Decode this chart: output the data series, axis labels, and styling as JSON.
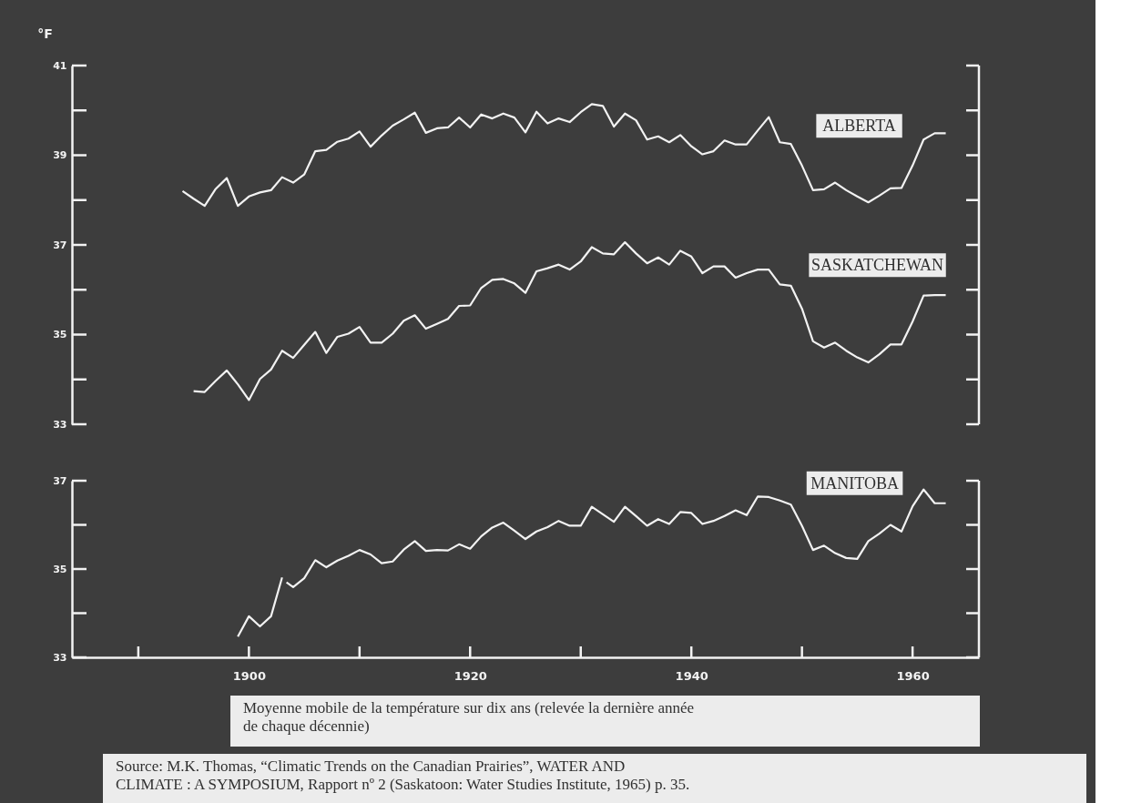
{
  "chart_data": [
    {
      "type": "line",
      "ylabel": "°F",
      "xlim": [
        1884,
        1966
      ],
      "ylim": [
        33,
        41
      ],
      "yticks": [
        33,
        {
          "value": 34,
          "label": null
        },
        35,
        {
          "value": 36,
          "label": null
        },
        37,
        {
          "value": 38,
          "label": null
        },
        39,
        {
          "value": 40,
          "label": null
        },
        41
      ],
      "tick_labels": "y",
      "series": [
        {
          "name": "ALBERTA",
          "color": "#f2f2f2",
          "x": [
            1894,
            1895,
            1896,
            1897,
            1898,
            1899,
            1900,
            1901,
            1902,
            1903,
            1904,
            1905,
            1906,
            1907,
            1908,
            1909,
            1910,
            1911,
            1912,
            1913,
            1914,
            1915,
            1916,
            1917,
            1918,
            1919,
            1920,
            1921,
            1922,
            1923,
            1924,
            1925,
            1926,
            1927,
            1928,
            1929,
            1930,
            1931,
            1932,
            1933,
            1934,
            1935,
            1936,
            1937,
            1938,
            1939,
            1940,
            1941,
            1942,
            1943,
            1944,
            1945,
            1946,
            1947,
            1948,
            1949,
            1950,
            1951,
            1952,
            1953,
            1954,
            1955,
            1956,
            1957,
            1958,
            1959,
            1960,
            1961,
            1962,
            1963
          ],
          "values": [
            38.2,
            38.03,
            37.87,
            38.25,
            38.49,
            37.87,
            38.08,
            38.17,
            38.22,
            38.51,
            38.39,
            38.57,
            39.09,
            39.12,
            39.3,
            39.37,
            39.53,
            39.19,
            39.44,
            39.66,
            39.8,
            39.95,
            39.5,
            39.6,
            39.62,
            39.84,
            39.62,
            39.91,
            39.82,
            39.93,
            39.84,
            39.51,
            39.97,
            39.71,
            39.82,
            39.74,
            39.96,
            40.14,
            40.1,
            39.64,
            39.93,
            39.78,
            39.35,
            39.42,
            39.29,
            39.45,
            39.2,
            39.02,
            39.09,
            39.33,
            39.24,
            39.24,
            39.55,
            39.85,
            39.29,
            39.25,
            38.77,
            38.22,
            38.24,
            38.39,
            38.22,
            38.08,
            37.95,
            38.1,
            38.26,
            38.27,
            38.77,
            39.35,
            39.49,
            39.49
          ]
        },
        {
          "name": "SASKATCHEWAN",
          "color": "#f2f2f2",
          "x": [
            1895,
            1896,
            1897,
            1898,
            1899,
            1900,
            1901,
            1902,
            1903,
            1904,
            1905,
            1906,
            1907,
            1908,
            1909,
            1910,
            1911,
            1912,
            1913,
            1914,
            1915,
            1916,
            1917,
            1918,
            1919,
            1920,
            1921,
            1922,
            1923,
            1924,
            1925,
            1926,
            1927,
            1928,
            1929,
            1930,
            1931,
            1932,
            1933,
            1934,
            1935,
            1936,
            1937,
            1938,
            1939,
            1940,
            1941,
            1942,
            1943,
            1944,
            1945,
            1946,
            1947,
            1948,
            1949,
            1950,
            1951,
            1952,
            1953,
            1954,
            1955,
            1956,
            1957,
            1958,
            1959,
            1960,
            1961,
            1962,
            1963
          ],
          "values": [
            33.74,
            33.72,
            33.97,
            34.2,
            33.89,
            33.54,
            34.01,
            34.22,
            34.64,
            34.48,
            34.77,
            35.06,
            34.59,
            34.95,
            35.02,
            35.17,
            34.82,
            34.82,
            35.02,
            35.31,
            35.43,
            35.13,
            35.24,
            35.35,
            35.64,
            35.65,
            36.04,
            36.22,
            36.24,
            36.14,
            35.93,
            36.41,
            36.48,
            36.56,
            36.45,
            36.63,
            36.95,
            36.81,
            36.79,
            37.06,
            36.81,
            36.59,
            36.72,
            36.56,
            36.87,
            36.74,
            36.37,
            36.52,
            36.52,
            36.27,
            36.37,
            36.45,
            36.45,
            36.12,
            36.09,
            35.58,
            34.85,
            34.71,
            34.82,
            34.64,
            34.49,
            34.38,
            34.56,
            34.78,
            34.78,
            35.29,
            35.87,
            35.88,
            35.88
          ]
        }
      ]
    },
    {
      "type": "line",
      "xlim": [
        1884,
        1966
      ],
      "ylim": [
        33,
        37
      ],
      "xticks": [
        {
          "value": 1890,
          "label": null
        },
        1900,
        {
          "value": 1910,
          "label": null
        },
        1920,
        {
          "value": 1930,
          "label": null
        },
        1940,
        {
          "value": 1950,
          "label": null
        },
        1960
      ],
      "yticks": [
        33,
        {
          "value": 34,
          "label": null
        },
        35,
        {
          "value": 36,
          "label": null
        },
        37
      ],
      "series": [
        {
          "name": "MANITOBA",
          "color": "#f2f2f2",
          "x": [
            1899,
            1900,
            1901,
            1902,
            1903,
            1903.2,
            1903.4,
            1904,
            1905,
            1906,
            1907,
            1908,
            1909,
            1910,
            1911,
            1912,
            1913,
            1914,
            1915,
            1916,
            1917,
            1918,
            1919,
            1920,
            1921,
            1922,
            1923,
            1924,
            1925,
            1926,
            1927,
            1928,
            1929,
            1930,
            1931,
            1932,
            1933,
            1934,
            1935,
            1936,
            1937,
            1938,
            1939,
            1940,
            1941,
            1942,
            1943,
            1944,
            1945,
            1946,
            1947,
            1948,
            1949,
            1950,
            1951,
            1952,
            1953,
            1954,
            1955,
            1956,
            1957,
            1958,
            1959,
            1960,
            1961,
            1962,
            1963
          ],
          "values": [
            33.47,
            33.93,
            33.7,
            33.93,
            34.81,
            null,
            34.7,
            34.59,
            34.79,
            35.2,
            35.04,
            35.19,
            35.3,
            35.43,
            35.33,
            35.13,
            35.17,
            35.44,
            35.63,
            35.41,
            35.43,
            35.42,
            35.56,
            35.46,
            35.74,
            35.94,
            36.05,
            35.87,
            35.68,
            35.85,
            35.95,
            36.09,
            35.98,
            35.98,
            36.41,
            36.24,
            36.07,
            36.41,
            36.2,
            35.98,
            36.13,
            36.02,
            36.29,
            36.27,
            36.02,
            36.09,
            36.2,
            36.33,
            36.22,
            36.64,
            36.63,
            36.55,
            36.46,
            35.98,
            35.43,
            35.53,
            35.36,
            35.25,
            35.23,
            35.63,
            35.8,
            36.0,
            35.85,
            36.42,
            36.8,
            36.49,
            36.49
          ]
        }
      ],
      "annotations": [
        "Moyenne mobile de la température sur dix ans (relevée la dernière année\nde chaque décennie)",
        "Source:   M.K. Thomas, “Climatic Trends on the Canadian Prairies”, WATER AND\n               CLIMATE :   A SYMPOSIUM, Rapport nº 2 (Saskatoon:   Water Studies Institute, 1965) p. 35."
      ]
    }
  ]
}
